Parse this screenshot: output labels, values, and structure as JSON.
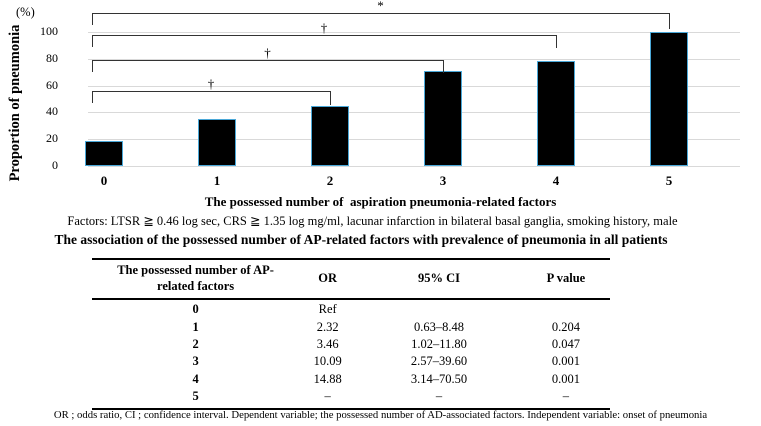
{
  "chart_data": {
    "type": "bar",
    "title": "",
    "categories": [
      "0",
      "1",
      "2",
      "3",
      "4",
      "5"
    ],
    "values": [
      19,
      35,
      45,
      71,
      78,
      100
    ],
    "xlabel": "The possessed number of  aspiration pneumonia-related factors",
    "ylabel": "Proportion of pneumonia",
    "y_unit_label": "(%)",
    "ylim": [
      0,
      100
    ],
    "yticks": [
      0,
      20,
      40,
      60,
      80,
      100
    ],
    "grid": true,
    "legend": "none",
    "bar_fill_color": "#000000",
    "bar_border_color": "#4aa8d8",
    "significance_brackets": [
      {
        "from": "0",
        "to": "5",
        "label": "*"
      },
      {
        "from": "0",
        "to": "4",
        "label": "†"
      },
      {
        "from": "0",
        "to": "3",
        "label": "†"
      },
      {
        "from": "0",
        "to": "2",
        "label": "†"
      }
    ]
  },
  "notes": {
    "factors": "Factors: LTSR ≧ 0.46 log sec, CRS ≧ 1.35 log mg/ml, lacunar infarction in bilateral basal ganglia, smoking history, male",
    "footnote": "OR ; odds ratio, CI ; confidence interval. Dependent variable; the possessed number of AD-associated factors. Independent variable: onset of pneumonia"
  },
  "table": {
    "title": "The association of the possessed number of AP-related factors with prevalence of pneumonia in all patients",
    "headers": [
      "The possessed number of AP-\nrelated factors",
      "OR",
      "95% CI",
      "P value"
    ],
    "rows": [
      [
        "0",
        "Ref",
        "",
        ""
      ],
      [
        "1",
        "2.32",
        "0.63–8.48",
        "0.204"
      ],
      [
        "2",
        "3.46",
        "1.02–11.80",
        "0.047"
      ],
      [
        "3",
        "10.09",
        "2.57–39.60",
        "0.001"
      ],
      [
        "4",
        "14.88",
        "3.14–70.50",
        "0.001"
      ],
      [
        "5",
        "–",
        "–",
        "–"
      ]
    ]
  }
}
